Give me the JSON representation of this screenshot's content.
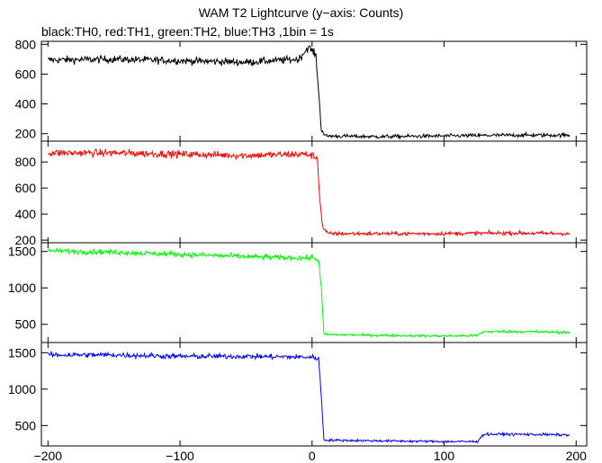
{
  "chart_data": {
    "type": "line",
    "title": "WAM T2 Lightcurve (y−axis: Counts)",
    "subtitle": "black:TH0, red:TH1, green:TH2, blue:TH3 ,1bin = 1s",
    "xlabel": "",
    "ylabel": "",
    "xlim": [
      -205,
      208
    ],
    "x_ticks": [
      -200,
      -100,
      0,
      100,
      200
    ],
    "x_tick_labels": [
      "−200",
      "−100",
      "0",
      "100",
      "200"
    ],
    "panels": [
      {
        "series": [
          {
            "name": "TH0",
            "color": "#000000",
            "points": [
              [
                -200,
                695
              ],
              [
                -150,
                700
              ],
              [
                -100,
                690
              ],
              [
                -50,
                680
              ],
              [
                -10,
                700
              ],
              [
                -3,
                780
              ],
              [
                0,
                760
              ],
              [
                3,
                720
              ],
              [
                5,
                480
              ],
              [
                7,
                230
              ],
              [
                10,
                185
              ],
              [
                50,
                180
              ],
              [
                100,
                185
              ],
              [
                150,
                190
              ],
              [
                195,
                190
              ]
            ]
          }
        ],
        "ylim": [
          150,
          820
        ],
        "y_ticks": [
          200,
          400,
          600,
          800
        ]
      },
      {
        "series": [
          {
            "name": "TH1",
            "color": "#ff0000",
            "points": [
              [
                -200,
                870
              ],
              [
                -150,
                870
              ],
              [
                -100,
                860
              ],
              [
                -50,
                850
              ],
              [
                -5,
                860
              ],
              [
                0,
                850
              ],
              [
                4,
                830
              ],
              [
                6,
                500
              ],
              [
                8,
                300
              ],
              [
                12,
                250
              ],
              [
                50,
                250
              ],
              [
                100,
                250
              ],
              [
                150,
                255
              ],
              [
                195,
                250
              ]
            ]
          }
        ],
        "ylim": [
          180,
          960
        ],
        "y_ticks": [
          200,
          400,
          600,
          800
        ]
      },
      {
        "series": [
          {
            "name": "TH2",
            "color": "#00ff00",
            "points": [
              [
                -200,
                1510
              ],
              [
                -150,
                1490
              ],
              [
                -100,
                1460
              ],
              [
                -50,
                1430
              ],
              [
                -5,
                1410
              ],
              [
                0,
                1420
              ],
              [
                5,
                1380
              ],
              [
                7,
                1000
              ],
              [
                9,
                360
              ],
              [
                50,
                350
              ],
              [
                100,
                340
              ],
              [
                125,
                345
              ],
              [
                130,
                400
              ],
              [
                160,
                400
              ],
              [
                195,
                390
              ]
            ]
          }
        ],
        "ylim": [
          250,
          1620
        ],
        "y_ticks": [
          500,
          1000,
          1500
        ]
      },
      {
        "series": [
          {
            "name": "TH3",
            "color": "#0000ff",
            "points": [
              [
                -200,
                1470
              ],
              [
                -150,
                1470
              ],
              [
                -100,
                1450
              ],
              [
                -50,
                1450
              ],
              [
                -5,
                1440
              ],
              [
                0,
                1440
              ],
              [
                5,
                1420
              ],
              [
                7,
                900
              ],
              [
                9,
                300
              ],
              [
                50,
                290
              ],
              [
                100,
                280
              ],
              [
                125,
                280
              ],
              [
                130,
                380
              ],
              [
                160,
                380
              ],
              [
                195,
                370
              ]
            ]
          }
        ],
        "ylim": [
          220,
          1640
        ],
        "y_ticks": [
          500,
          1000,
          1500
        ]
      }
    ]
  }
}
